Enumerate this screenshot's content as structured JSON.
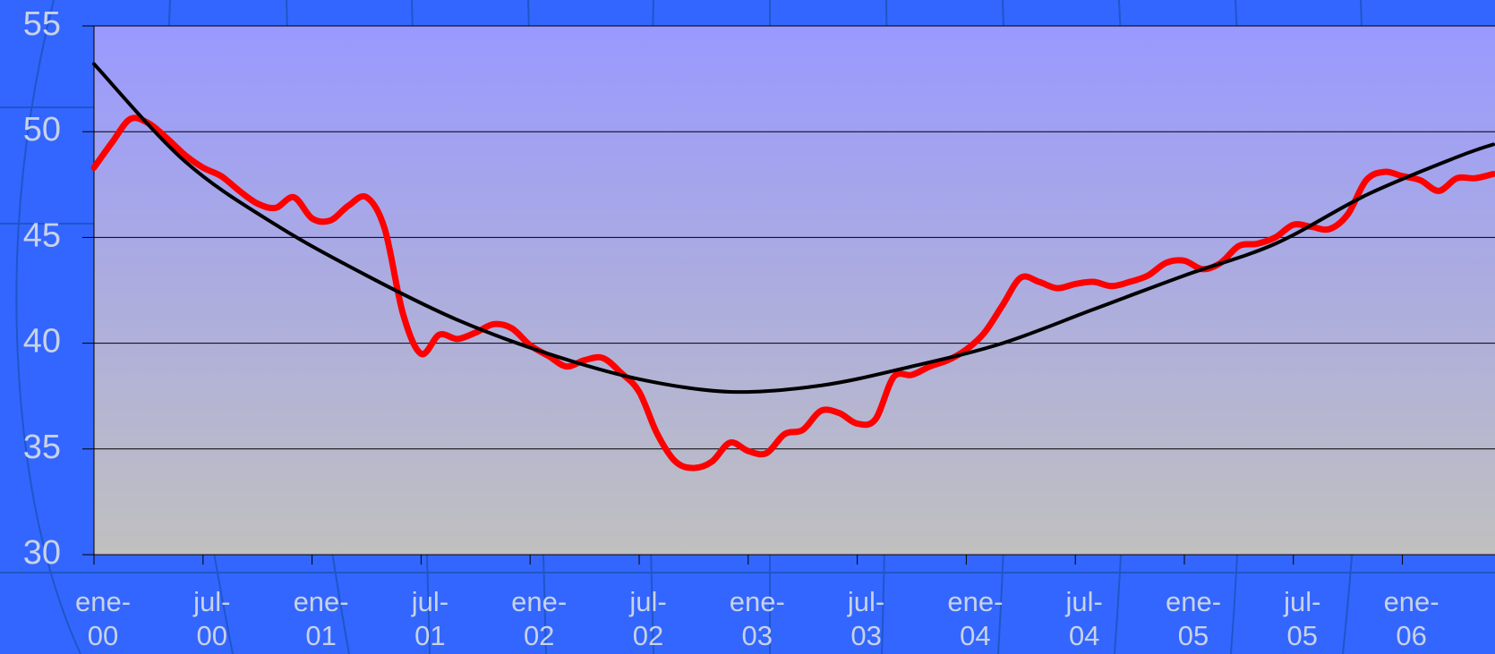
{
  "chart_data": {
    "type": "line",
    "categories": [
      "ene-00",
      null,
      null,
      null,
      null,
      null,
      "jul-00",
      null,
      null,
      null,
      null,
      null,
      "ene-01",
      null,
      null,
      null,
      null,
      null,
      "jul-01",
      null,
      null,
      null,
      null,
      null,
      "ene-02",
      null,
      null,
      null,
      null,
      null,
      "jul-02",
      null,
      null,
      null,
      null,
      null,
      "ene-03",
      null,
      null,
      null,
      null,
      null,
      "jul-03",
      null,
      null,
      null,
      null,
      null,
      "ene-04",
      null,
      null,
      null,
      null,
      null,
      "jul-04",
      null,
      null,
      null,
      null,
      null,
      "ene-05",
      null,
      null,
      null,
      null,
      null,
      "jul-05",
      null,
      null,
      null,
      null,
      null,
      "ene-06",
      null,
      null,
      null,
      null,
      null
    ],
    "series": [
      {
        "color": "#ff0000",
        "values": [
          48.3,
          49.5,
          50.6,
          50.4,
          49.7,
          48.9,
          48.3,
          47.9,
          47.2,
          46.6,
          46.4,
          46.9,
          45.9,
          45.8,
          46.5,
          46.9,
          45.4,
          41.4,
          39.5,
          40.4,
          40.2,
          40.5,
          40.9,
          40.7,
          39.9,
          39.4,
          38.9,
          39.2,
          39.3,
          38.6,
          37.7,
          35.7,
          34.4,
          34.1,
          34.4,
          35.3,
          34.9,
          34.8,
          35.7,
          35.9,
          36.8,
          36.7,
          36.2,
          36.4,
          38.4,
          38.5,
          38.9,
          39.2,
          39.7,
          40.5,
          41.8,
          43.1,
          42.9,
          42.6,
          42.8,
          42.9,
          42.7,
          42.9,
          43.2,
          43.8,
          43.9,
          43.5,
          43.8,
          44.6,
          44.7,
          45.0,
          45.6,
          45.5,
          45.4,
          46.1,
          47.7,
          48.1,
          47.9,
          47.7,
          47.2,
          47.8,
          47.8,
          48.0
        ]
      },
      {
        "color": "#000000",
        "x": [
          0,
          5,
          10,
          15,
          20,
          25,
          30,
          35,
          40,
          45,
          50,
          55,
          60,
          65,
          70,
          75,
          77
        ],
        "values": [
          53.2,
          48.6,
          45.6,
          43.2,
          41.1,
          39.5,
          38.3,
          37.7,
          38.0,
          38.9,
          40.0,
          41.6,
          43.2,
          44.7,
          47.0,
          48.8,
          49.4
        ]
      }
    ],
    "ylim": [
      30,
      55
    ],
    "yticks": [
      30,
      35,
      40,
      45,
      50,
      55
    ],
    "grid": true
  }
}
